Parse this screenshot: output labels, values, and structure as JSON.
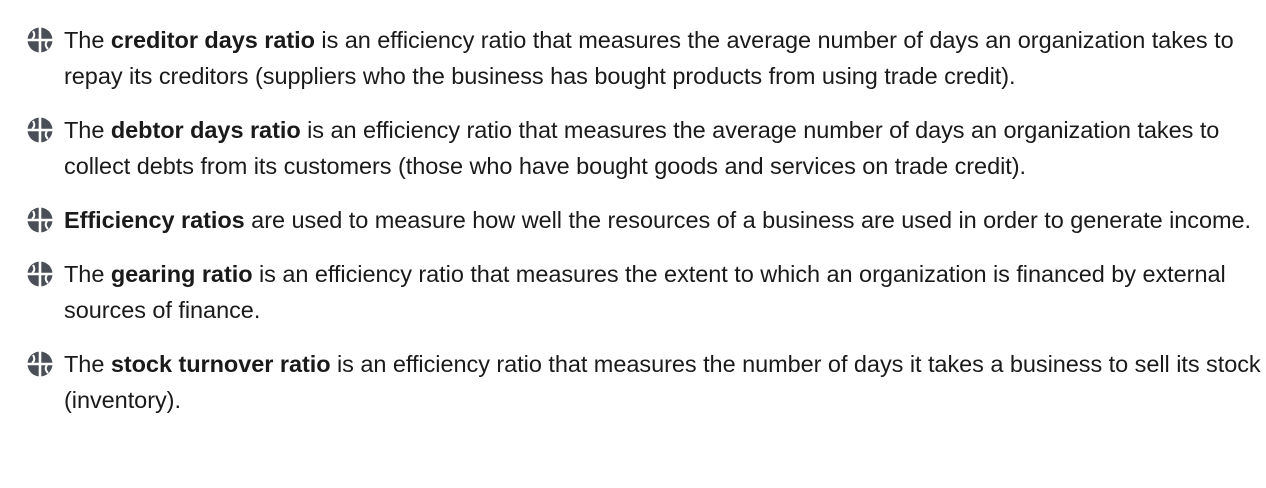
{
  "definitions": [
    {
      "icon": "globe-bullet-icon",
      "prefix": "The ",
      "term": "creditor days ratio",
      "text": " is an efficiency ratio that measures the average number of days an organization takes to repay its creditors (suppliers who the business has bought products from using trade credit)."
    },
    {
      "icon": "globe-bullet-icon",
      "prefix": "The ",
      "term": "debtor days ratio",
      "text": " is an efficiency ratio that measures the average number of days an organization takes to collect debts from its customers (those who have bought goods and services on trade credit)."
    },
    {
      "icon": "globe-bullet-icon",
      "prefix": "",
      "term": "Efficiency ratios",
      "text": " are used to measure how well the resources of a business are used in order to generate income."
    },
    {
      "icon": "globe-bullet-icon",
      "prefix": "The ",
      "term": "gearing ratio",
      "text": " is an efficiency ratio that measures the extent to which an organization is financed by external sources of finance."
    },
    {
      "icon": "globe-bullet-icon",
      "prefix": "The ",
      "term": "stock turnover ratio",
      "text": " is an efficiency ratio that measures the number of days it takes a business to sell its stock (inventory)."
    }
  ],
  "colors": {
    "text": "#1a1a1a",
    "bullet_dark": "#4a4f57",
    "bullet_light": "#ffffff"
  }
}
